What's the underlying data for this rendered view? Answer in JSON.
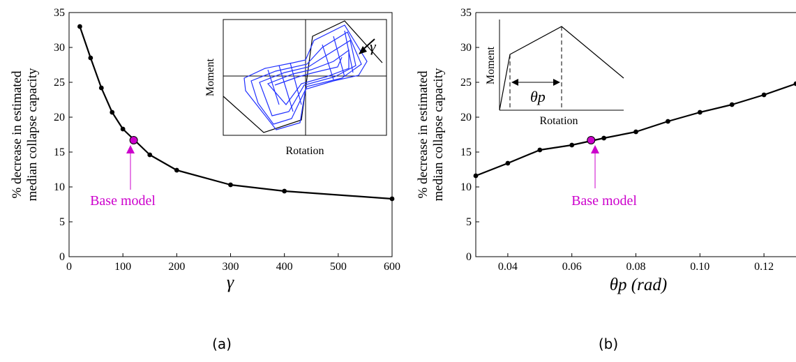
{
  "chart_data": [
    {
      "type": "line",
      "panel_label": "(a)",
      "xlabel": "γ",
      "ylabel_lines": [
        "% decrease in estimated",
        "median collapse capacity"
      ],
      "xlim": [
        0,
        600
      ],
      "ylim": [
        0,
        35
      ],
      "xticks": [
        0,
        100,
        200,
        300,
        400,
        500,
        600
      ],
      "yticks": [
        0,
        5,
        10,
        15,
        20,
        25,
        30,
        35
      ],
      "series": [
        {
          "x": [
            20,
            40,
            60,
            80,
            100,
            150,
            200,
            300,
            400,
            600
          ],
          "y": [
            33.0,
            28.5,
            24.2,
            20.7,
            18.3,
            14.6,
            12.4,
            10.3,
            9.4,
            8.3
          ]
        }
      ],
      "highlight": {
        "label": "Base model",
        "x": 120,
        "y": 16.7
      },
      "inset": {
        "xlabel": "Rotation",
        "ylabel": "Moment",
        "annotation": "γ"
      }
    },
    {
      "type": "line",
      "panel_label": "(b)",
      "xlabel": "θp (rad)",
      "ylabel_lines": [
        "% decrease in estimated",
        "median collapse capacity"
      ],
      "xlim": [
        0.03,
        0.13
      ],
      "ylim": [
        0,
        35
      ],
      "xticks": [
        0.04,
        0.06,
        0.08,
        0.1,
        0.12
      ],
      "xtick_labels": [
        "0.04",
        "0.06",
        "0.08",
        "0.10",
        "0.12"
      ],
      "yticks": [
        0,
        5,
        10,
        15,
        20,
        25,
        30,
        35
      ],
      "series": [
        {
          "x": [
            0.03,
            0.04,
            0.05,
            0.06,
            0.07,
            0.08,
            0.09,
            0.1,
            0.11,
            0.12,
            0.13
          ],
          "y": [
            11.6,
            13.4,
            15.3,
            16.0,
            17.0,
            17.9,
            19.4,
            20.7,
            21.8,
            23.2,
            24.8
          ]
        }
      ],
      "highlight": {
        "label": "Base model",
        "x": 0.066,
        "y": 16.7
      },
      "inset": {
        "xlabel": "Rotation",
        "ylabel": "Moment",
        "annotation": "θp"
      }
    }
  ],
  "colors": {
    "line": "#000000",
    "highlight": "#cc00cc",
    "hysteresis": "#1f2fff"
  }
}
